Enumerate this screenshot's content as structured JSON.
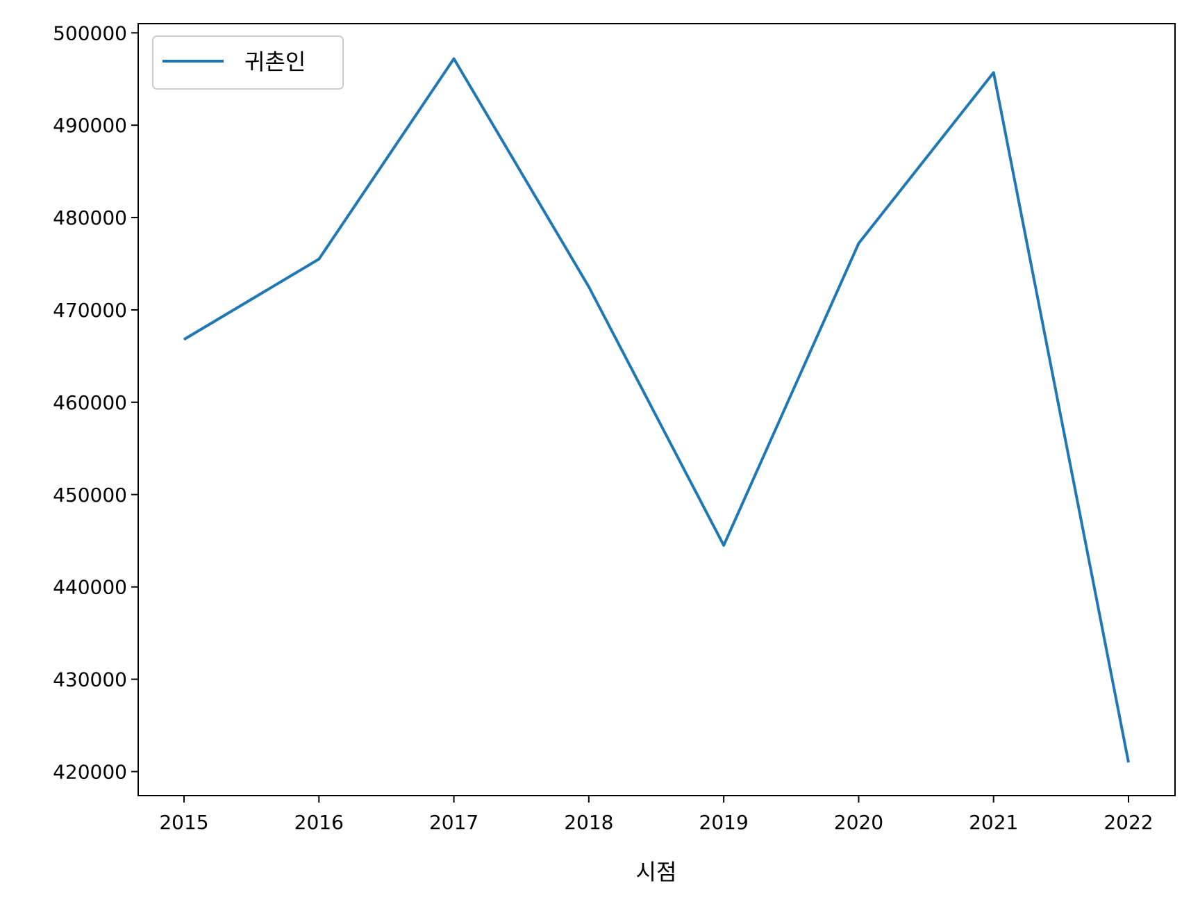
{
  "chart_data": {
    "type": "line",
    "title": "",
    "xlabel": "시점",
    "ylabel": "",
    "x": [
      "2015",
      "2016",
      "2017",
      "2018",
      "2019",
      "2020",
      "2021",
      "2022"
    ],
    "series": [
      {
        "name": "귀촌인",
        "color": "#1f77b4",
        "values": [
          466800,
          475500,
          497200,
          472500,
          444500,
          477200,
          495700,
          421000
        ]
      }
    ],
    "ylim": [
      417400,
      501000
    ],
    "yticks": [
      420000,
      430000,
      440000,
      450000,
      460000,
      470000,
      480000,
      490000,
      500000
    ],
    "grid": false,
    "legend": "top-left"
  }
}
